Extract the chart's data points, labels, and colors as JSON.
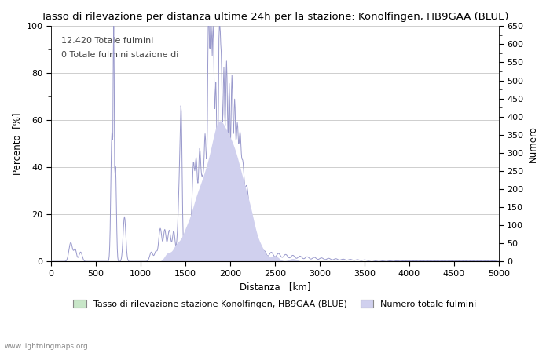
{
  "title": "Tasso di rilevazione per distanza ultime 24h per la stazione: Konolfingen, HB9GAA (BLUE)",
  "xlabel": "Distanza   [km]",
  "ylabel_left": "Percento  [%]",
  "ylabel_right": "Numero",
  "annotation_line1": "12.420 Totale fulmini",
  "annotation_line2": "0 Totale fulmini stazione di",
  "legend_label1": "Tasso di rilevazione stazione Konolfingen, HB9GAA (BLUE)",
  "legend_label2": "Numero totale fulmini",
  "watermark": "www.lightningmaps.org",
  "xlim": [
    0,
    5000
  ],
  "ylim_left": [
    0,
    100
  ],
  "ylim_right": [
    0,
    650
  ],
  "xticks": [
    0,
    500,
    1000,
    1500,
    2000,
    2500,
    3000,
    3500,
    4000,
    4500,
    5000
  ],
  "yticks_left": [
    0,
    20,
    40,
    60,
    80,
    100
  ],
  "yticks_right": [
    0,
    50,
    100,
    150,
    200,
    250,
    300,
    350,
    400,
    450,
    500,
    550,
    600,
    650
  ],
  "line_color": "#9999cc",
  "fill_color_green": "#c8e6c8",
  "fill_color_blue": "#d0d0ee",
  "bg_color": "#ffffff",
  "grid_color": "#bbbbbb",
  "title_fontsize": 9.5,
  "label_fontsize": 8.5,
  "tick_fontsize": 8,
  "legend_fontsize": 8,
  "annot_fontsize": 8
}
